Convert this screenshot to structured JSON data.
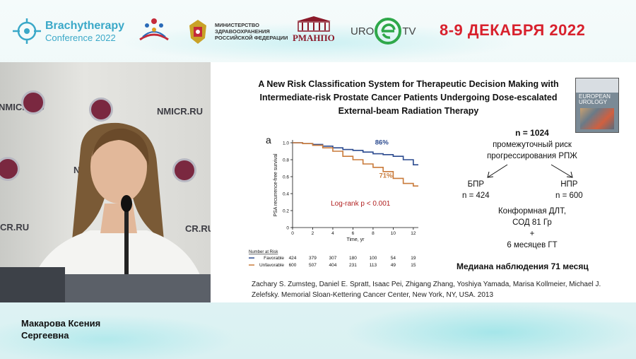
{
  "header": {
    "brachy_title": "Brachytherapy",
    "brachy_sub": "Conference 2022",
    "ministry_line1": "МИНИСТЕРСТВО",
    "ministry_line2": "ЗДРАВООХРАНЕНИЯ",
    "ministry_line3": "РОССИЙСКОЙ ФЕДЕРАЦИИ",
    "rmanpo": "РМАНПО",
    "uro": "URO",
    "tv": "TV",
    "date": "8-9 ДЕКАБРЯ 2022"
  },
  "video": {
    "wall_text_1": "NMICR.RU",
    "wall_text_2": "NMICR.RU",
    "wall_text_3": "CR.RU",
    "wall_text_4": "NMIC",
    "wall_text_5": "CR.RU"
  },
  "slide": {
    "title_line1": "A New Risk Classification System for Therapeutic Decision Making with",
    "title_line2": "Intermediate-risk Prostate Cancer Patients Undergoing Dose-escalated",
    "title_line3": "External-beam Radiation Therapy",
    "journal_line1": "EUROPEAN",
    "journal_line2": "UROLOGY",
    "n_total": "n = 1024",
    "risk_line1": "промежуточный риск",
    "risk_line2": "прогрессирования РПЖ",
    "bpr_label": "БПР",
    "bpr_n": "n = 424",
    "npr_label": "НПР",
    "npr_n": "n = 600",
    "treat_line1": "Конформная ДЛТ,",
    "treat_line2": "СОД 81 Гр",
    "treat_plus": "+",
    "treat_line3": "6 месяцев ГТ",
    "median": "Медиана наблюдения 71 месяц",
    "citation": "Zachary S. Zumsteg, Daniel E. Spratt, Isaac Pei, Zhigang Zhang, Yoshiya Yamada, Marisa Kollmeier, Michael J. Zelefsky. Memorial Sloan-Kettering Cancer Center, New York, NY, USA. 2013"
  },
  "chart_data": {
    "type": "line",
    "panel_label": "a",
    "ylabel": "PSA recurrence-free survival",
    "xlabel": "Time, yr",
    "xlim": [
      0,
      12.5
    ],
    "ylim": [
      0,
      1.0
    ],
    "x_ticks": [
      "0",
      "2",
      "4",
      "6",
      "8",
      "10",
      "12"
    ],
    "y_ticks": [
      "0",
      "0.2",
      "0.4",
      "0.6",
      "0.8",
      "1.0"
    ],
    "series": [
      {
        "name": "Favorable",
        "color": "#2b4a8f",
        "label": "86%",
        "x": [
          0,
          1,
          2,
          3,
          4,
          5,
          6,
          7,
          8,
          9,
          10,
          11,
          12,
          12.5
        ],
        "y": [
          1.0,
          0.99,
          0.98,
          0.96,
          0.94,
          0.92,
          0.91,
          0.89,
          0.87,
          0.86,
          0.84,
          0.8,
          0.74,
          0.74
        ]
      },
      {
        "name": "Unfavorable",
        "color": "#c97a3a",
        "label": "71%",
        "x": [
          0,
          1,
          2,
          3,
          4,
          5,
          6,
          7,
          8,
          9,
          10,
          11,
          12,
          12.5
        ],
        "y": [
          1.0,
          0.99,
          0.97,
          0.94,
          0.9,
          0.84,
          0.8,
          0.75,
          0.71,
          0.66,
          0.58,
          0.52,
          0.49,
          0.49
        ]
      }
    ],
    "annotation": "Log-rank p < 0.001",
    "risk_table": {
      "title": "Number at Risk",
      "rows": [
        {
          "name": "Favorable",
          "values": [
            "424",
            "379",
            "307",
            "180",
            "100",
            "54",
            "19"
          ]
        },
        {
          "name": "Unfavorable",
          "values": [
            "600",
            "507",
            "404",
            "231",
            "113",
            "49",
            "15"
          ]
        }
      ]
    }
  },
  "speaker": {
    "line1": "Макарова Ксения",
    "line2": "Сергеевна"
  }
}
